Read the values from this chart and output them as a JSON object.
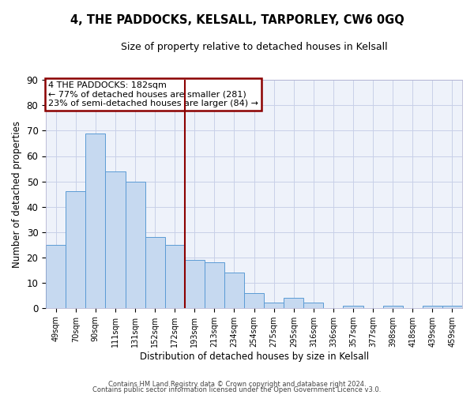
{
  "title": "4, THE PADDOCKS, KELSALL, TARPORLEY, CW6 0GQ",
  "subtitle": "Size of property relative to detached houses in Kelsall",
  "xlabel": "Distribution of detached houses by size in Kelsall",
  "ylabel": "Number of detached properties",
  "bar_labels": [
    "49sqm",
    "70sqm",
    "90sqm",
    "111sqm",
    "131sqm",
    "152sqm",
    "172sqm",
    "193sqm",
    "213sqm",
    "234sqm",
    "254sqm",
    "275sqm",
    "295sqm",
    "316sqm",
    "336sqm",
    "357sqm",
    "377sqm",
    "398sqm",
    "418sqm",
    "439sqm",
    "459sqm"
  ],
  "bar_values": [
    25,
    46,
    69,
    54,
    50,
    28,
    25,
    19,
    18,
    14,
    6,
    2,
    4,
    2,
    0,
    1,
    0,
    1,
    0,
    1,
    1
  ],
  "bar_color": "#c6d9f0",
  "bar_edge_color": "#5b9bd5",
  "annotation_text": "4 THE PADDOCKS: 182sqm\n← 77% of detached houses are smaller (281)\n23% of semi-detached houses are larger (84) →",
  "annotation_box_color": "white",
  "annotation_box_edge_color": "#8b0000",
  "vline_color": "#8b0000",
  "ylim": [
    0,
    90
  ],
  "yticks": [
    0,
    10,
    20,
    30,
    40,
    50,
    60,
    70,
    80,
    90
  ],
  "bg_color": "#eef2fa",
  "grid_color": "#c8d0e8",
  "footer_line1": "Contains HM Land Registry data © Crown copyright and database right 2024.",
  "footer_line2": "Contains public sector information licensed under the Open Government Licence v3.0."
}
